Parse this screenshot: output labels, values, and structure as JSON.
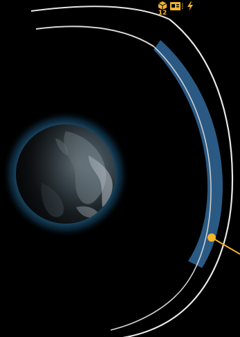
{
  "hud": {
    "cargo": {
      "icon": "cargo-box-icon",
      "count": "12"
    },
    "card_icon": "id-card-icon",
    "energy_icon": "lightning-bolt-icon",
    "accent_color": "#f4b52a"
  },
  "scene": {
    "planet_icon": "earth-planet",
    "orbit_band_color": "#2a5a84",
    "orbit_line_color": "#e9e9e9",
    "marker_color": "#f4b52a"
  }
}
